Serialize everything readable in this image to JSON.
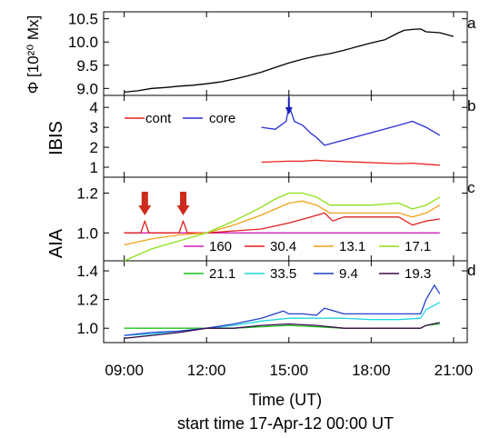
{
  "figure": {
    "time_axis": {
      "ticks": [
        "09:00",
        "12:00",
        "15:00",
        "18:00",
        "21:00"
      ],
      "label": "Time (UT)",
      "start_label": "start time 17-Apr-12 00:00 UT"
    }
  },
  "chart_data": [
    {
      "panel": "a",
      "type": "line",
      "ylabel": "Φ [10²⁰ Mx]",
      "yticks": [
        "9.0",
        "9.5",
        "10.0",
        "10.5"
      ],
      "ylim": [
        8.85,
        10.65
      ],
      "xlim": [
        8.25,
        21.5
      ],
      "series": [
        {
          "color": "#000000",
          "x": [
            9.0,
            9.5,
            10.0,
            10.5,
            11.0,
            11.5,
            12.0,
            12.5,
            13.0,
            13.5,
            14.0,
            14.5,
            15.0,
            15.5,
            16.0,
            16.5,
            17.0,
            17.5,
            18.0,
            18.5,
            19.0,
            19.2,
            19.5,
            19.8,
            20.0,
            20.5,
            21.0
          ],
          "y": [
            8.92,
            8.95,
            9.0,
            9.02,
            9.05,
            9.07,
            9.1,
            9.14,
            9.2,
            9.27,
            9.35,
            9.45,
            9.55,
            9.63,
            9.7,
            9.75,
            9.82,
            9.9,
            9.98,
            10.05,
            10.2,
            10.25,
            10.27,
            10.28,
            10.22,
            10.2,
            10.12
          ]
        }
      ]
    },
    {
      "panel": "b",
      "type": "line",
      "ylabel": "IBIS",
      "yticks": [
        "1",
        "2",
        "3",
        "4"
      ],
      "ylim": [
        0.5,
        4.6
      ],
      "xlim": [
        8.25,
        21.5
      ],
      "legend": [
        "cont",
        "core"
      ],
      "series": [
        {
          "name": "cont",
          "color": "#e8231f",
          "x": [
            14.0,
            14.5,
            15.0,
            15.5,
            16.0,
            16.3,
            19.0,
            19.5,
            20.0,
            20.5
          ],
          "y": [
            1.25,
            1.28,
            1.3,
            1.3,
            1.35,
            1.32,
            1.18,
            1.2,
            1.15,
            1.1
          ]
        },
        {
          "name": "core",
          "color": "#2a2fd4",
          "x": [
            14.0,
            14.5,
            14.9,
            15.0,
            15.2,
            15.5,
            15.8,
            16.0,
            16.3,
            19.0,
            19.5,
            20.0,
            20.5
          ],
          "y": [
            3.0,
            2.9,
            3.3,
            4.1,
            3.3,
            3.1,
            2.7,
            2.5,
            2.1,
            3.1,
            3.3,
            3.0,
            2.6
          ]
        }
      ],
      "annotations": [
        {
          "type": "arrow",
          "x": 15.0,
          "color": "#1a1fbf"
        }
      ]
    },
    {
      "panel": "c",
      "type": "line",
      "ylabel": "AIA",
      "yticks": [
        "1.0",
        "1.2"
      ],
      "ylim": [
        0.86,
        1.28
      ],
      "xlim": [
        8.25,
        21.5
      ],
      "legend": [
        "160",
        "30.4",
        "13.1",
        "17.1"
      ],
      "series": [
        {
          "name": "160",
          "color": "#d21fb8",
          "x": [
            9.0,
            12.0,
            15.0,
            18.0,
            20.5
          ],
          "y": [
            1.0,
            1.0,
            1.0,
            1.0,
            1.0
          ]
        },
        {
          "name": "30.4",
          "color": "#e0201f",
          "x": [
            9.0,
            9.6,
            9.75,
            9.9,
            10.5,
            11.0,
            11.15,
            11.3,
            12.0,
            13.0,
            14.0,
            15.0,
            15.8,
            16.3,
            16.6,
            17.0,
            18.0,
            19.0,
            19.5,
            20.0,
            20.5
          ],
          "y": [
            1.0,
            1.0,
            1.06,
            1.0,
            1.0,
            1.0,
            1.06,
            1.0,
            1.0,
            1.01,
            1.02,
            1.05,
            1.08,
            1.1,
            1.06,
            1.08,
            1.08,
            1.08,
            1.04,
            1.06,
            1.07
          ]
        },
        {
          "name": "13.1",
          "color": "#f0a21a",
          "x": [
            9.0,
            10.0,
            11.0,
            12.0,
            13.0,
            14.0,
            15.0,
            15.5,
            16.0,
            16.5,
            17.0,
            18.0,
            19.0,
            19.5,
            20.0,
            20.5
          ],
          "y": [
            0.94,
            0.97,
            0.99,
            1.0,
            1.04,
            1.09,
            1.15,
            1.16,
            1.14,
            1.1,
            1.1,
            1.1,
            1.1,
            1.08,
            1.1,
            1.14
          ]
        },
        {
          "name": "17.1",
          "color": "#8ee01a",
          "x": [
            9.0,
            10.0,
            11.0,
            12.0,
            13.0,
            14.0,
            14.5,
            15.0,
            15.5,
            16.0,
            16.5,
            17.0,
            18.0,
            19.0,
            19.5,
            20.0,
            20.5
          ],
          "y": [
            0.86,
            0.92,
            0.96,
            1.0,
            1.06,
            1.13,
            1.17,
            1.2,
            1.2,
            1.18,
            1.14,
            1.14,
            1.14,
            1.15,
            1.12,
            1.14,
            1.18
          ]
        }
      ],
      "annotations": [
        {
          "type": "arrow",
          "x": 9.75,
          "color": "#cc2a1a"
        },
        {
          "type": "arrow",
          "x": 11.15,
          "color": "#cc2a1a"
        }
      ]
    },
    {
      "panel": "d",
      "type": "line",
      "yticks": [
        "1.0",
        "1.2",
        "1.4"
      ],
      "ylim": [
        0.9,
        1.47
      ],
      "xlim": [
        8.25,
        21.5
      ],
      "legend": [
        "21.1",
        "33.5",
        "9.4",
        "19.3"
      ],
      "series": [
        {
          "name": "21.1",
          "color": "#1fc21f",
          "x": [
            9.0,
            10.0,
            11.0,
            12.0,
            13.0,
            14.0,
            15.0,
            16.0,
            17.0,
            18.0,
            19.0,
            19.8,
            20.0,
            20.5
          ],
          "y": [
            1.0,
            1.0,
            1.0,
            1.0,
            1.0,
            1.01,
            1.02,
            1.01,
            1.0,
            1.0,
            1.0,
            1.0,
            1.02,
            1.03
          ]
        },
        {
          "name": "33.5",
          "color": "#22d6e0",
          "x": [
            9.0,
            10.0,
            11.0,
            12.0,
            13.0,
            14.0,
            15.0,
            16.0,
            17.0,
            18.0,
            19.0,
            19.8,
            20.0,
            20.5
          ],
          "y": [
            0.95,
            0.96,
            0.98,
            1.0,
            1.02,
            1.05,
            1.07,
            1.07,
            1.07,
            1.06,
            1.06,
            1.07,
            1.13,
            1.18
          ]
        },
        {
          "name": "9.4",
          "color": "#2240cc",
          "x": [
            9.0,
            10.0,
            11.0,
            12.0,
            13.0,
            14.0,
            14.8,
            15.0,
            15.5,
            16.0,
            16.3,
            17.0,
            18.0,
            19.0,
            19.8,
            20.0,
            20.3,
            20.5
          ],
          "y": [
            0.95,
            0.97,
            0.98,
            1.0,
            1.03,
            1.07,
            1.12,
            1.1,
            1.1,
            1.09,
            1.14,
            1.1,
            1.1,
            1.1,
            1.1,
            1.2,
            1.3,
            1.24
          ]
        },
        {
          "name": "19.3",
          "color": "#3a0a4a",
          "x": [
            9.0,
            10.0,
            11.0,
            12.0,
            13.0,
            14.0,
            15.0,
            16.0,
            17.0,
            18.0,
            19.0,
            19.8,
            20.0,
            20.5
          ],
          "y": [
            0.93,
            0.95,
            0.97,
            1.0,
            1.0,
            1.02,
            1.03,
            1.02,
            1.0,
            1.0,
            1.0,
            1.0,
            1.02,
            1.04
          ]
        }
      ]
    }
  ]
}
